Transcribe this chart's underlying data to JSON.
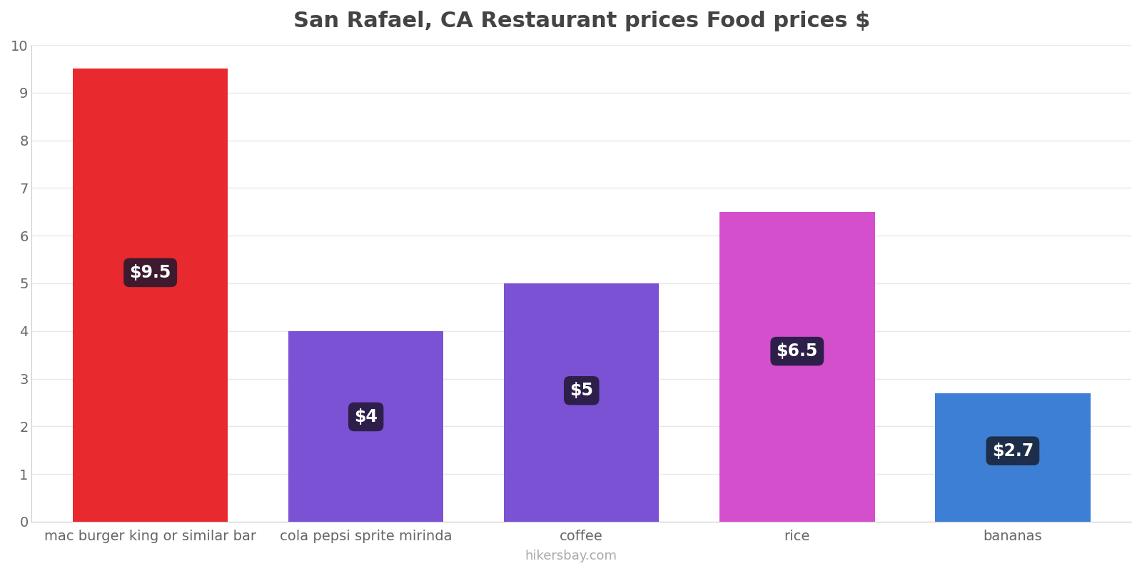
{
  "title": "San Rafael, CA Restaurant prices Food prices $",
  "categories": [
    "mac burger king or similar bar",
    "cola pepsi sprite mirinda",
    "coffee",
    "rice",
    "bananas"
  ],
  "values": [
    9.5,
    4.0,
    5.0,
    6.5,
    2.7
  ],
  "bar_colors": [
    "#e8292e",
    "#7b52d3",
    "#7b52d3",
    "#d44fcc",
    "#3d7fd4"
  ],
  "label_texts": [
    "$9.5",
    "$4",
    "$5",
    "$6.5",
    "$2.7"
  ],
  "label_box_colors": [
    "#3d1a2e",
    "#2e1f4a",
    "#2e1f4a",
    "#2e1f4a",
    "#1e2e4a"
  ],
  "label_text_color": "#ffffff",
  "ylim": [
    0,
    10
  ],
  "yticks": [
    0,
    1,
    2,
    3,
    4,
    5,
    6,
    7,
    8,
    9,
    10
  ],
  "title_fontsize": 22,
  "tick_fontsize": 14,
  "label_fontsize": 17,
  "watermark": "hikersbay.com",
  "background_color": "#ffffff",
  "grid_color": "#e8e8e8",
  "title_color": "#444444",
  "tick_color": "#666666",
  "bar_width": 0.72
}
